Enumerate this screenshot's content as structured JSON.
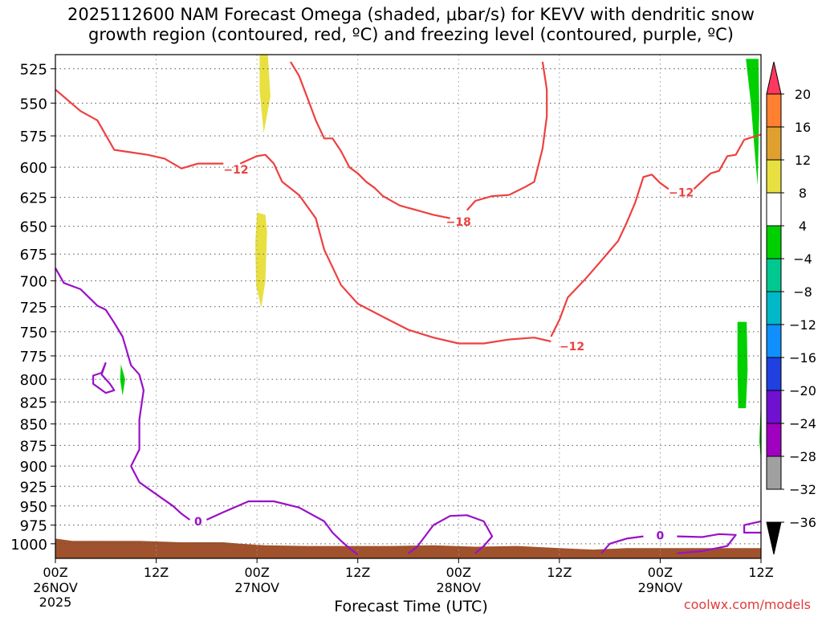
{
  "title": "2025112600 NAM Forecast Omega (shaded, μbar/s) for KEVV with dendritic snow\ngrowth region (contoured, red, ºC) and freezing level (contoured, purple, ºC)",
  "credit": "coolwx.com/models",
  "chart_data": {
    "type": "heatmap",
    "title": "2025112600 NAM Forecast Omega (shaded, μbar/s) for KEVV with dendritic snow growth region (contoured, red, ºC) and freezing level (contoured, purple, ºC)",
    "xlabel": "Forecast Time (UTC)",
    "ylabel": "",
    "x_ticks": [
      {
        "hour": 0,
        "label": "00Z",
        "sub1": "26NOV",
        "sub2": "2025"
      },
      {
        "hour": 12,
        "label": "12Z",
        "sub1": "",
        "sub2": ""
      },
      {
        "hour": 24,
        "label": "00Z",
        "sub1": "27NOV",
        "sub2": ""
      },
      {
        "hour": 36,
        "label": "12Z",
        "sub1": "",
        "sub2": ""
      },
      {
        "hour": 48,
        "label": "00Z",
        "sub1": "28NOV",
        "sub2": ""
      },
      {
        "hour": 60,
        "label": "12Z",
        "sub1": "",
        "sub2": ""
      },
      {
        "hour": 72,
        "label": "00Z",
        "sub1": "29NOV",
        "sub2": ""
      },
      {
        "hour": 84,
        "label": "12Z",
        "sub1": "",
        "sub2": ""
      }
    ],
    "xlim_hours": [
      0,
      84
    ],
    "y_ticks": [
      525,
      550,
      575,
      600,
      625,
      650,
      675,
      700,
      725,
      750,
      775,
      800,
      825,
      850,
      875,
      900,
      925,
      950,
      975,
      1000
    ],
    "ylim_hpa": [
      1020,
      515
    ],
    "y_scale": "log",
    "grid": true,
    "colorbar": {
      "labels": [
        "20",
        "16",
        "12",
        "8",
        "4",
        "−4",
        "−8",
        "−12",
        "−16",
        "−20",
        "−24",
        "−28",
        "−32",
        "−36"
      ],
      "colors": [
        "#ff3860",
        "#ff8030",
        "#e0a030",
        "#e8e040",
        "#ffffff",
        "#00d000",
        "#00c890",
        "#00b8c8",
        "#1090ff",
        "#2040e0",
        "#7010d0",
        "#a000c0",
        "#a0a0a0",
        "#000000"
      ]
    },
    "contours": {
      "red": [
        {
          "label": "−12",
          "points": [
            [
              0,
              540
            ],
            [
              3,
              556
            ],
            [
              5,
              563
            ],
            [
              7,
              586
            ],
            [
              9,
              588
            ],
            [
              11,
              590
            ],
            [
              13,
              593
            ],
            [
              15,
              601
            ],
            [
              17,
              597
            ],
            [
              20,
              597
            ]
          ],
          "label_at": [
            21.5,
            602
          ]
        },
        {
          "label": "−12",
          "points": [
            [
              22,
              597
            ],
            [
              24,
              591
            ],
            [
              25,
              590
            ],
            [
              26,
              597
            ],
            [
              27,
              612
            ],
            [
              29,
              623
            ],
            [
              31,
              643
            ],
            [
              32,
              671
            ],
            [
              34,
              704
            ],
            [
              36,
              722
            ],
            [
              39,
              735
            ],
            [
              42,
              748
            ],
            [
              45,
              756
            ],
            [
              48,
              762
            ],
            [
              51,
              762
            ],
            [
              54,
              758
            ],
            [
              57,
              756
            ],
            [
              59,
              760
            ]
          ],
          "label_at": [
            61.5,
            765
          ]
        },
        {
          "label": "−18",
          "points": [
            [
              28,
              520
            ],
            [
              29,
              530
            ],
            [
              30,
              546
            ],
            [
              31,
              563
            ],
            [
              32,
              577
            ],
            [
              33,
              577
            ],
            [
              34,
              587
            ],
            [
              35,
              600
            ],
            [
              36,
              605
            ],
            [
              37,
              612
            ],
            [
              38,
              617
            ],
            [
              39,
              624
            ],
            [
              41,
              632
            ],
            [
              43,
              636
            ],
            [
              45,
              640
            ],
            [
              47,
              643
            ]
          ],
          "label_at": [
            48,
            646
          ]
        },
        {
          "label": "−18",
          "points": [
            [
              49,
              636
            ],
            [
              50,
              628
            ],
            [
              52,
              624
            ],
            [
              54,
              623
            ],
            [
              56,
              616
            ],
            [
              57,
              612
            ],
            [
              58,
              585
            ],
            [
              58.5,
              560
            ],
            [
              58.5,
              540
            ],
            [
              58,
              520
            ]
          ],
          "label_at": null
        },
        {
          "label": "−12",
          "points": [
            [
              59,
              755
            ],
            [
              60,
              738
            ],
            [
              61,
              716
            ],
            [
              63,
              699
            ],
            [
              65,
              681
            ],
            [
              67,
              663
            ],
            [
              68,
              647
            ],
            [
              69,
              630
            ],
            [
              70,
              608
            ],
            [
              71,
              606
            ],
            [
              72,
              613
            ],
            [
              73,
              618
            ]
          ],
          "label_at": [
            74.5,
            621
          ]
        },
        {
          "label": "−12",
          "points": [
            [
              76,
              618
            ],
            [
              78,
              605
            ],
            [
              79,
              603
            ],
            [
              80,
              591
            ],
            [
              81,
              590
            ],
            [
              82,
              578
            ],
            [
              83,
              576
            ],
            [
              84,
              574
            ]
          ],
          "label_at": null
        }
      ],
      "purple": [
        {
          "label": "0",
          "points": [
            [
              0,
              688
            ],
            [
              1,
              702
            ],
            [
              3,
              708
            ],
            [
              4,
              716
            ],
            [
              5,
              724
            ],
            [
              6,
              728
            ],
            [
              7,
              741
            ],
            [
              8,
              755
            ],
            [
              9,
              785
            ],
            [
              10,
              795
            ],
            [
              10.5,
              812
            ],
            [
              10,
              845
            ],
            [
              10,
              880
            ],
            [
              9,
              900
            ],
            [
              10,
              920
            ],
            [
              12,
              935
            ],
            [
              14,
              950
            ],
            [
              15,
              960
            ],
            [
              16,
              968
            ]
          ],
          "label_at": [
            17,
            970
          ]
        },
        {
          "label": "0",
          "points": [
            [
              18,
              968
            ],
            [
              20,
              958
            ],
            [
              23,
              944
            ],
            [
              26,
              944
            ],
            [
              29,
              952
            ],
            [
              32,
              970
            ],
            [
              33,
              985
            ],
            [
              34,
              996
            ],
            [
              35,
              1006
            ],
            [
              36,
              1015
            ]
          ],
          "label_at": null
        },
        {
          "label": "",
          "points": [
            [
              6,
              782
            ],
            [
              5.5,
              795
            ],
            [
              6.5,
              805
            ],
            [
              7,
              812
            ],
            [
              6,
              815
            ],
            [
              4.5,
              805
            ],
            [
              4.5,
              796
            ],
            [
              5.5,
              793
            ],
            [
              6,
              782
            ]
          ],
          "label_at": null
        },
        {
          "label": "",
          "points": [
            [
              42,
              1013
            ],
            [
              43,
              1005
            ],
            [
              44,
              990
            ],
            [
              45,
              975
            ],
            [
              47,
              963
            ],
            [
              49,
              962
            ],
            [
              51,
              970
            ],
            [
              52,
              990
            ],
            [
              51,
              1003
            ],
            [
              50,
              1013
            ]
          ],
          "label_at": null
        },
        {
          "label": "0",
          "points": [
            [
              65,
              1013
            ],
            [
              66,
              1000
            ],
            [
              68,
              993
            ],
            [
              70,
              990
            ]
          ],
          "label_at": [
            72,
            989
          ]
        },
        {
          "label": "0",
          "points": [
            [
              74,
              990
            ],
            [
              77,
              991
            ],
            [
              79,
              987
            ],
            [
              81,
              988
            ],
            [
              80,
              1003
            ],
            [
              77,
              1010
            ],
            [
              74,
              1013
            ]
          ],
          "label_at": null
        },
        {
          "label": "",
          "points": [
            [
              84,
              970
            ],
            [
              82,
              975
            ],
            [
              82,
              985
            ],
            [
              84,
              985
            ]
          ],
          "label_at": null
        }
      ]
    },
    "shaded": [
      {
        "omega": 4,
        "color": "#e8e040",
        "points": [
          [
            24.3,
            515
          ],
          [
            25.3,
            515
          ],
          [
            25.6,
            545
          ],
          [
            24.8,
            573
          ],
          [
            24.3,
            540
          ]
        ]
      },
      {
        "omega": 4,
        "color": "#e8e040",
        "points": [
          [
            24,
            638
          ],
          [
            25,
            640
          ],
          [
            25.2,
            655
          ],
          [
            25,
            700
          ],
          [
            24.5,
            726
          ],
          [
            23.9,
            705
          ],
          [
            23.8,
            665
          ]
        ]
      },
      {
        "omega": -4,
        "color": "#00d000",
        "points": [
          [
            7.8,
            784
          ],
          [
            8.3,
            800
          ],
          [
            8,
            818
          ],
          [
            7.7,
            800
          ]
        ]
      },
      {
        "omega": -4,
        "color": "#00d000",
        "points": [
          [
            82.2,
            518
          ],
          [
            83.7,
            518
          ],
          [
            83.8,
            555
          ],
          [
            83.6,
            615
          ],
          [
            83.2,
            583
          ],
          [
            82.8,
            550
          ]
        ]
      },
      {
        "omega": -4,
        "color": "#00d000",
        "points": [
          [
            81.2,
            740
          ],
          [
            82.3,
            740
          ],
          [
            82.4,
            790
          ],
          [
            82.2,
            832
          ],
          [
            81.3,
            832
          ],
          [
            81.2,
            790
          ]
        ]
      },
      {
        "omega": -4,
        "color": "#00d000",
        "points": [
          [
            84,
            823
          ],
          [
            84,
            893
          ],
          [
            83.8,
            870
          ]
        ]
      }
    ],
    "terrain": {
      "color": "#a0522d",
      "points": [
        [
          0,
          993
        ],
        [
          2,
          996
        ],
        [
          5,
          996
        ],
        [
          10,
          996
        ],
        [
          15,
          998
        ],
        [
          20,
          998
        ],
        [
          22,
          1000
        ],
        [
          25,
          1002
        ],
        [
          30,
          1003
        ],
        [
          40,
          1003
        ],
        [
          45,
          1002
        ],
        [
          50,
          1004
        ],
        [
          55,
          1003
        ],
        [
          60,
          1006
        ],
        [
          64,
          1008
        ],
        [
          68,
          1006
        ],
        [
          72,
          1006
        ],
        [
          78,
          1006
        ],
        [
          84,
          1006
        ]
      ]
    }
  }
}
